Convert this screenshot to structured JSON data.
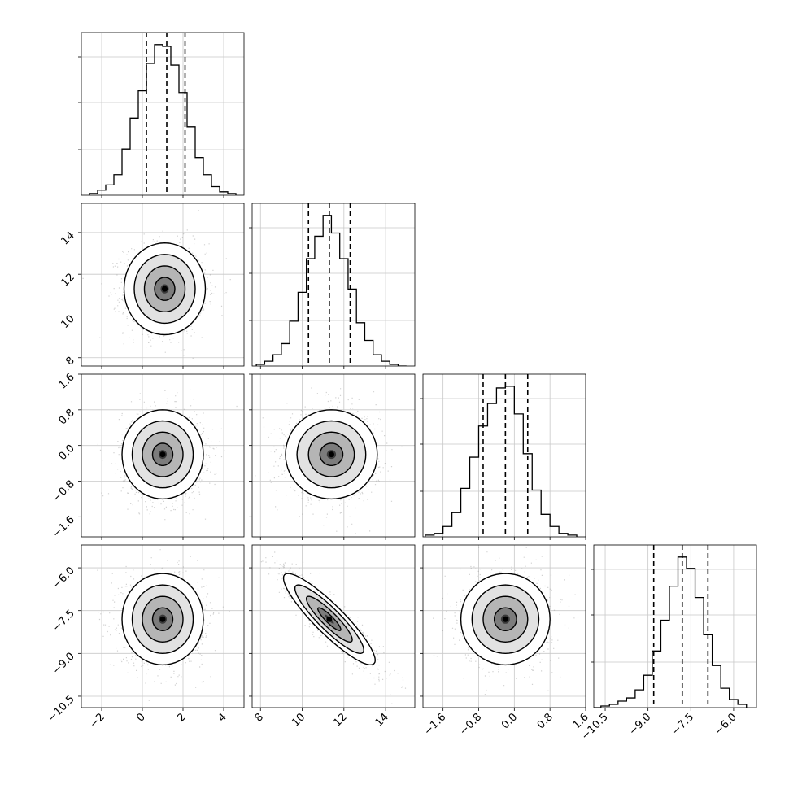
{
  "chart_data": {
    "type": "corner",
    "dimensions": 4,
    "title": "",
    "parameter_labels": [],
    "quantile_lines": "dashed",
    "grid": true,
    "colors": {
      "axis": "#000000",
      "grid": "#c8c8c8",
      "hist": "#000000",
      "contour": "#000000",
      "scatter": "#9a9a9a"
    },
    "parameters": [
      {
        "range": [
          -3,
          5
        ],
        "ticks": [
          -2,
          0,
          2,
          4
        ],
        "tick_labels": [
          "−2",
          "0",
          "2",
          "4"
        ],
        "quantiles": [
          0.2,
          1.2,
          2.1
        ],
        "hist_bins": [
          -2.4,
          -2.0,
          -1.6,
          -1.2,
          -0.8,
          -0.4,
          0.0,
          0.4,
          0.8,
          1.2,
          1.6,
          2.0,
          2.4,
          2.8,
          3.2,
          3.6,
          4.0,
          4.4
        ],
        "hist_counts": [
          1,
          3,
          6,
          12,
          27,
          45,
          61,
          77,
          88,
          87,
          76,
          60,
          40,
          22,
          12,
          5,
          2,
          1
        ]
      },
      {
        "range": [
          7.6,
          15.4
        ],
        "ticks": [
          8,
          10,
          12,
          14
        ],
        "tick_labels": [
          "8",
          "10",
          "12",
          "14"
        ],
        "quantiles": [
          10.3,
          11.3,
          12.3
        ],
        "hist_bins": [
          8.0,
          8.4,
          8.8,
          9.2,
          9.6,
          10.0,
          10.4,
          10.8,
          11.2,
          11.6,
          12.0,
          12.4,
          12.8,
          13.2,
          13.6,
          14.0,
          14.4,
          14.8
        ],
        "hist_counts": [
          1,
          3,
          7,
          14,
          28,
          46,
          67,
          81,
          94,
          83,
          67,
          48,
          27,
          16,
          7,
          3,
          1,
          0
        ]
      },
      {
        "range": [
          -2.05,
          1.6
        ],
        "ticks": [
          -1.6,
          -0.8,
          0.0,
          0.8,
          1.6
        ],
        "tick_labels": [
          "−1.6",
          "−0.8",
          "0.0",
          "0.8",
          "1.6"
        ],
        "quantiles": [
          -0.7,
          -0.2,
          0.3
        ],
        "hist_bins": [
          -1.9,
          -1.7,
          -1.5,
          -1.3,
          -1.1,
          -0.9,
          -0.7,
          -0.5,
          -0.3,
          -0.1,
          0.1,
          0.3,
          0.5,
          0.7,
          0.9,
          1.1,
          1.3
        ],
        "hist_counts": [
          1,
          2,
          6,
          14,
          28,
          46,
          64,
          77,
          86,
          87,
          71,
          48,
          27,
          13,
          6,
          2,
          1
        ]
      },
      {
        "range": [
          -10.9,
          -5.2
        ],
        "ticks": [
          -10.5,
          -9.0,
          -7.5,
          -6.0
        ],
        "tick_labels": [
          "−10.5",
          "−9.0",
          "−7.5",
          "−6.0"
        ],
        "quantiles": [
          -8.8,
          -7.8,
          -6.9
        ],
        "hist_bins": [
          -10.8,
          -10.5,
          -10.2,
          -9.9,
          -9.6,
          -9.3,
          -9.0,
          -8.7,
          -8.4,
          -8.1,
          -7.8,
          -7.5,
          -7.2,
          -6.9,
          -6.6,
          -6.3,
          -6.0,
          -5.7
        ],
        "hist_counts": [
          0,
          1,
          2,
          4,
          6,
          11,
          20,
          35,
          54,
          75,
          93,
          86,
          68,
          45,
          26,
          12,
          5,
          2
        ]
      }
    ],
    "panels_2d": [
      {
        "row": 1,
        "col": 0,
        "mean": [
          1.1,
          11.3
        ],
        "sd": [
          1.0,
          1.1
        ],
        "corr": 0.0
      },
      {
        "row": 2,
        "col": 0,
        "mean": [
          1.0,
          -0.2
        ],
        "sd": [
          1.0,
          0.5
        ],
        "corr": 0.0
      },
      {
        "row": 2,
        "col": 1,
        "mean": [
          11.4,
          -0.2
        ],
        "sd": [
          1.1,
          0.5
        ],
        "corr": 0.0
      },
      {
        "row": 3,
        "col": 0,
        "mean": [
          1.0,
          -7.8
        ],
        "sd": [
          1.0,
          0.8
        ],
        "corr": 0.0
      },
      {
        "row": 3,
        "col": 1,
        "mean": [
          11.3,
          -7.8
        ],
        "sd": [
          1.1,
          0.8
        ],
        "corr": -0.9
      },
      {
        "row": 3,
        "col": 2,
        "mean": [
          -0.2,
          -7.8
        ],
        "sd": [
          0.5,
          0.8
        ],
        "corr": 0.0
      }
    ]
  }
}
